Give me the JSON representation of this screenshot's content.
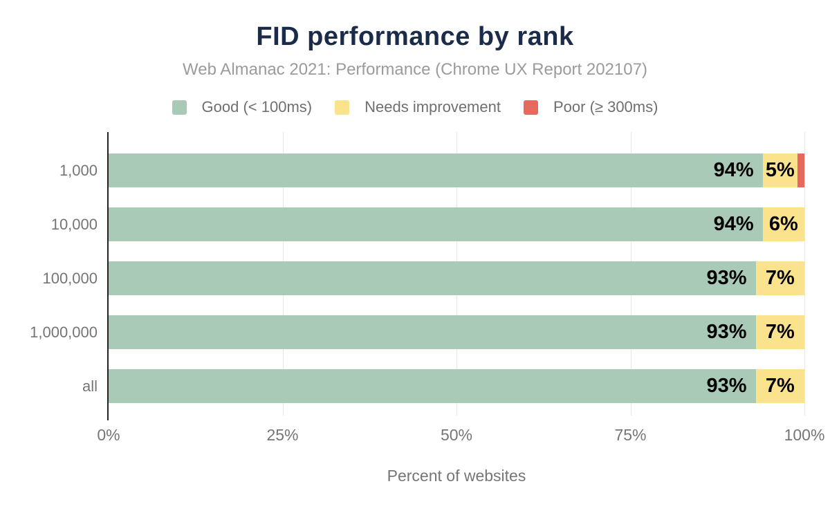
{
  "header": {
    "title": "FID performance by rank",
    "subtitle": "Web Almanac 2021: Performance (Chrome UX Report 202107)"
  },
  "chart_data": {
    "type": "bar",
    "orientation": "horizontal",
    "stacked": true,
    "title": "FID performance by rank",
    "subtitle": "Web Almanac 2021: Performance (Chrome UX Report 202107)",
    "categories": [
      "1,000",
      "10,000",
      "100,000",
      "1,000,000",
      "all"
    ],
    "series": [
      {
        "key": "good",
        "name": "Good (< 100ms)",
        "color": "#a8cab6",
        "values": [
          94,
          94,
          93,
          93,
          93
        ]
      },
      {
        "key": "needs-improvement",
        "name": "Needs improvement",
        "color": "#fbe28c",
        "values": [
          5,
          6,
          7,
          7,
          7
        ]
      },
      {
        "key": "poor",
        "name": "Poor (≥ 300ms)",
        "color": "#e5695c",
        "values": [
          1,
          0,
          0,
          0,
          0
        ]
      }
    ],
    "value_suffix": "%",
    "min_label_value": 4,
    "xlabel": "Percent of websites",
    "xlim": [
      0,
      100
    ],
    "xticks": [
      {
        "label": "0%",
        "position": 0
      },
      {
        "label": "25%",
        "position": 25
      },
      {
        "label": "50%",
        "position": 50
      },
      {
        "label": "75%",
        "position": 75
      },
      {
        "label": "100%",
        "position": 100
      }
    ],
    "grid_positions": [
      25,
      50,
      75,
      100
    ],
    "legend_position": "top",
    "colors": {
      "title": "#1b2b4a",
      "subtitle": "#9b9b9b",
      "axis_text": "#757575",
      "legend_text": "#6f6f6f",
      "bar_label": "#000000",
      "gridline": "#e7e7e7",
      "axis_line": "#212121",
      "background": "#ffffff"
    }
  }
}
